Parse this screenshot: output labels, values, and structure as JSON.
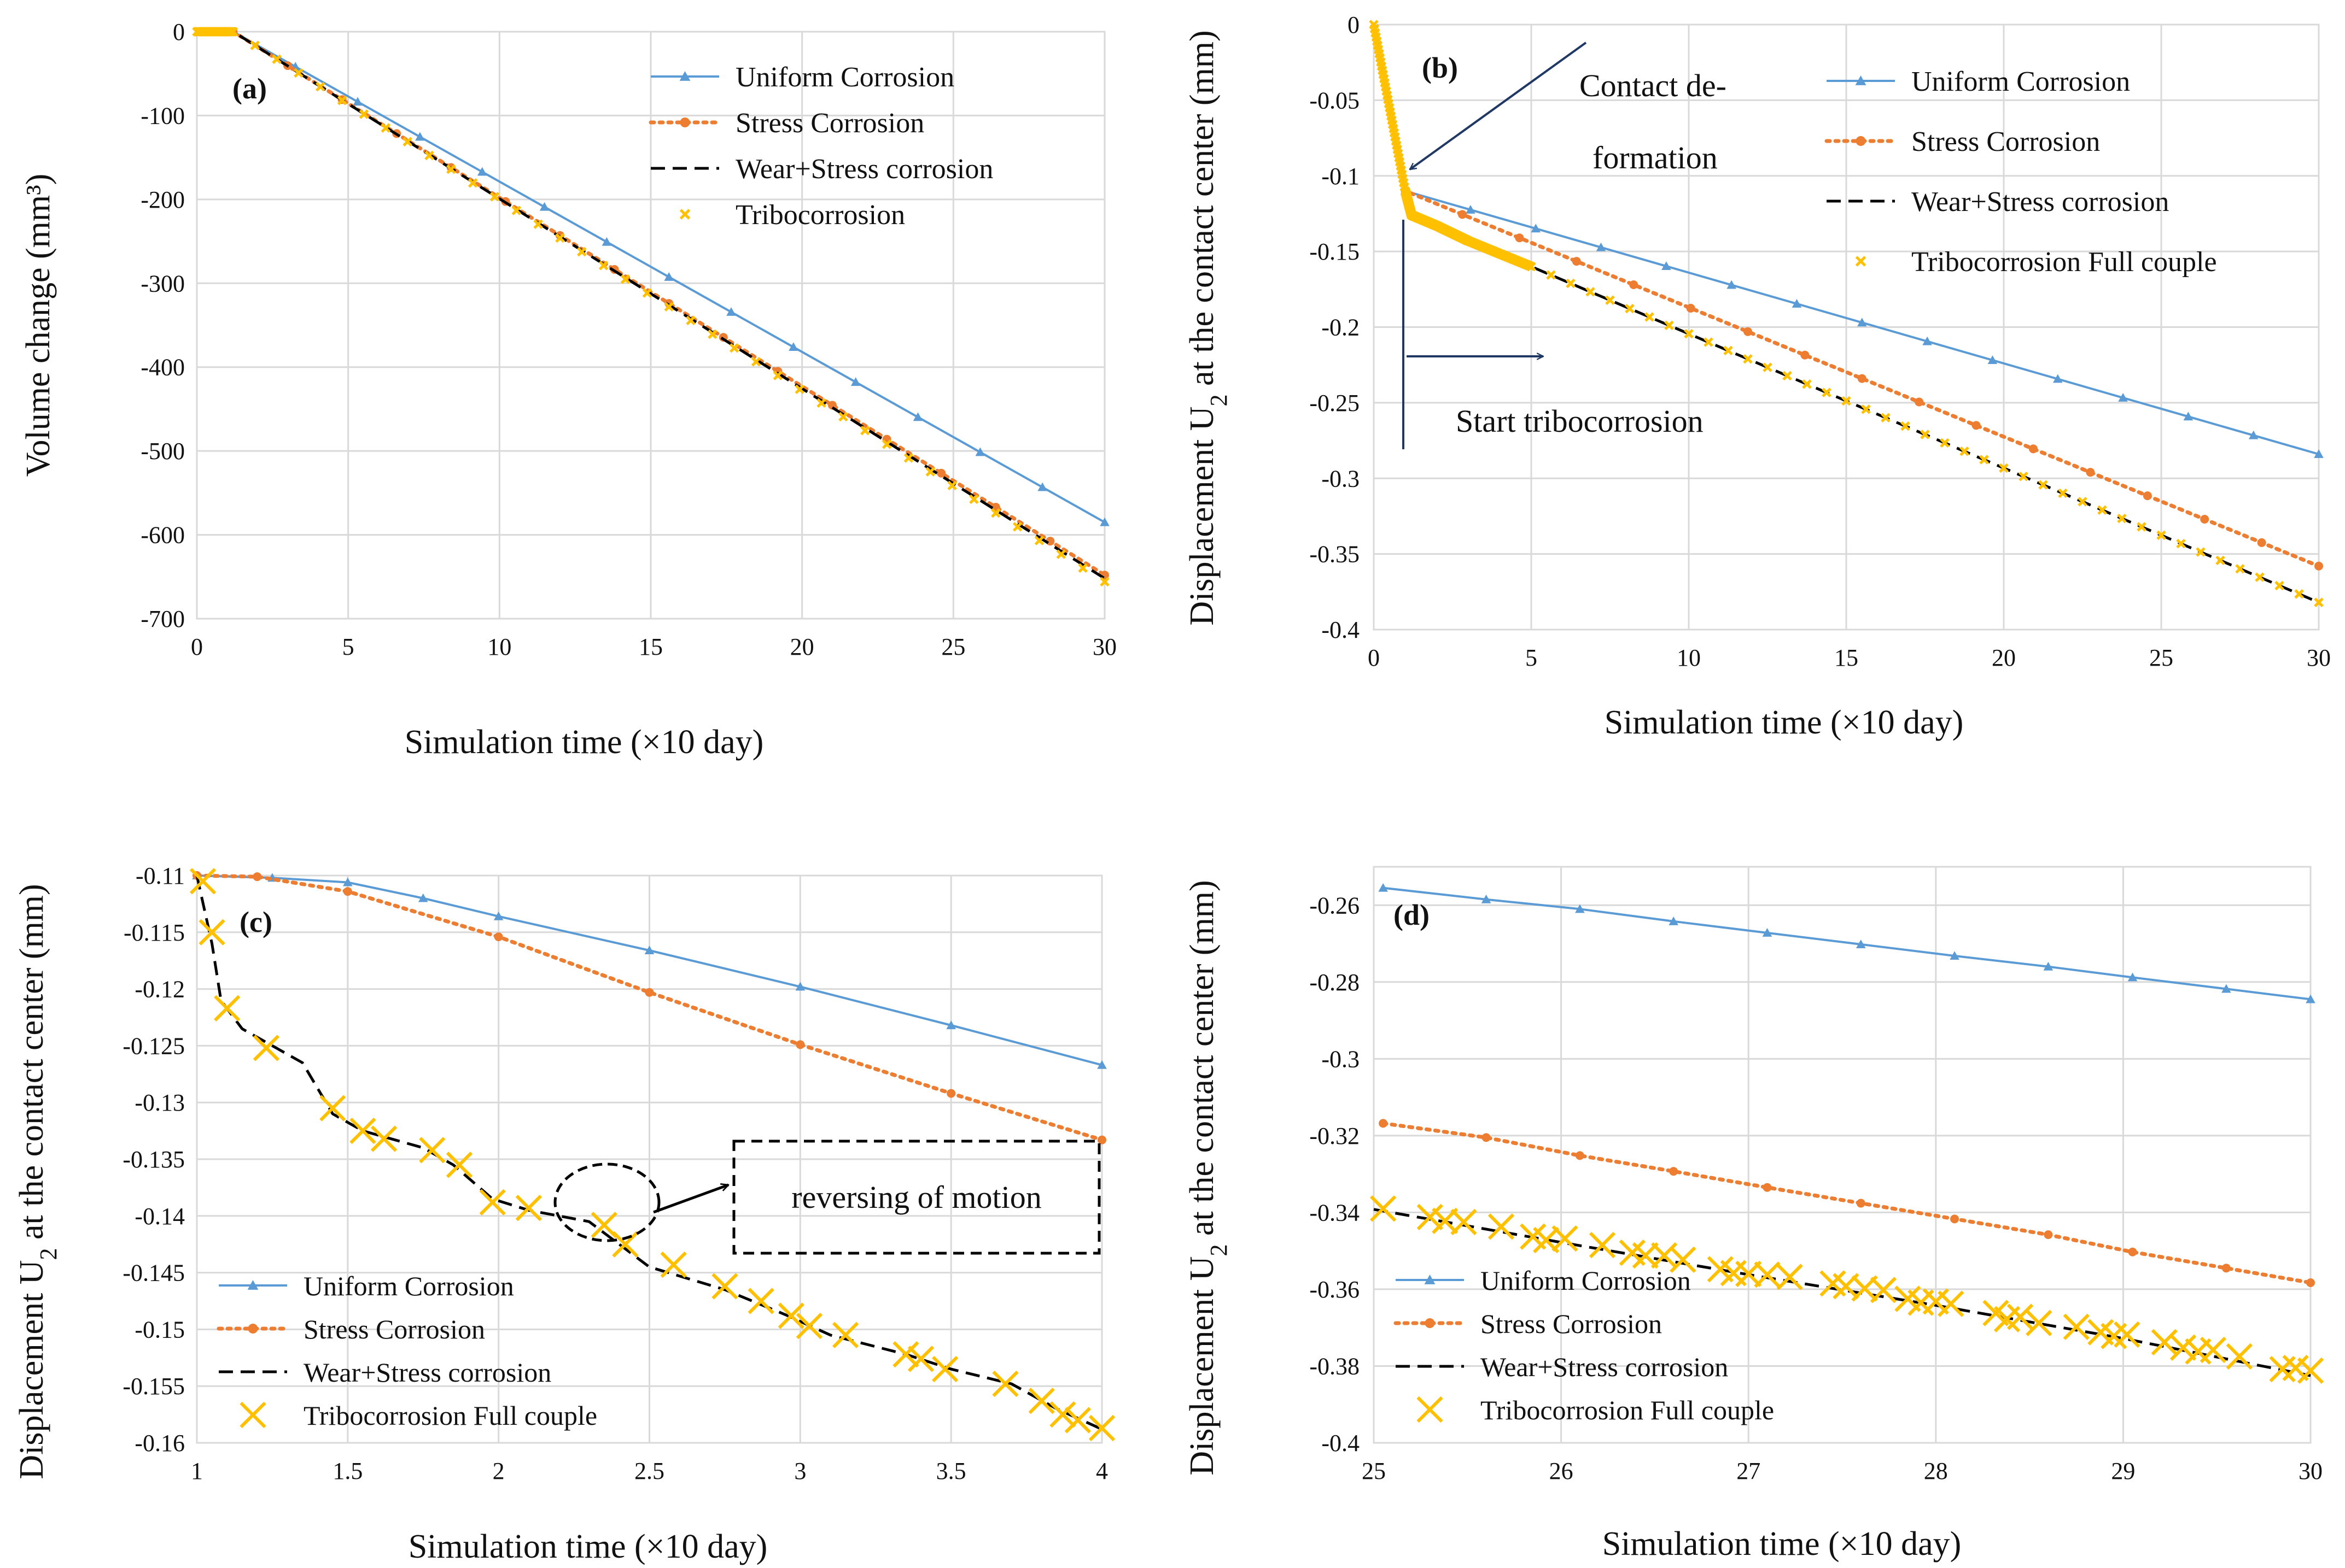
{
  "figure": {
    "xlabel_prefix": "Simulation time (",
    "xlabel_times": "×",
    "xlabel_suffix": "10 day)"
  },
  "colors": {
    "uniform": "#5B9BD5",
    "stress": "#ED7D31",
    "wear": "#000000",
    "tribo": "#FFC000",
    "grid": "#D9D9D9",
    "axis": "#BFBFBF",
    "annotation": "#1F3864"
  },
  "chart_data": [
    {
      "id": "a",
      "type": "line",
      "panel_label": "(a)",
      "ylabel": "Volume change (mm³)",
      "xlim": [
        0,
        30
      ],
      "ylim": [
        -700,
        0
      ],
      "xticks": [
        0,
        5,
        10,
        15,
        20,
        25,
        30
      ],
      "yticks": [
        0,
        -100,
        -200,
        -300,
        -400,
        -500,
        -600,
        -700
      ],
      "legend": [
        "Uniform Corrosion",
        "Stress Corrosion",
        "Wear+Stress corrosion",
        "Tribocorrosion"
      ],
      "series": [
        {
          "name": "Uniform Corrosion",
          "points": [
            [
              0,
              0
            ],
            [
              1.2,
              0
            ],
            [
              30,
              -585
            ]
          ]
        },
        {
          "name": "Stress Corrosion",
          "points": [
            [
              0,
              0
            ],
            [
              1.2,
              0
            ],
            [
              30,
              -648
            ]
          ]
        },
        {
          "name": "Wear+Stress corrosion",
          "points": [
            [
              0,
              0
            ],
            [
              1.2,
              0
            ],
            [
              30,
              -652
            ]
          ]
        },
        {
          "name": "Tribocorrosion",
          "points": [
            [
              0,
              0
            ],
            [
              1.2,
              0
            ],
            [
              30,
              -656
            ]
          ]
        }
      ],
      "annotations": []
    },
    {
      "id": "b",
      "type": "line",
      "panel_label": "(b)",
      "ylabel": "Displacement U2 at the contact center (mm)",
      "xlim": [
        0,
        30
      ],
      "ylim": [
        -0.4,
        0
      ],
      "xticks": [
        0,
        5,
        10,
        15,
        20,
        25,
        30
      ],
      "yticks": [
        0,
        -0.05,
        -0.1,
        -0.15,
        -0.2,
        -0.25,
        -0.3,
        -0.35,
        -0.4
      ],
      "legend": [
        "Uniform Corrosion",
        "Stress Corrosion",
        "Wear+Stress corrosion",
        "Tribocorrosion Full couple"
      ],
      "series": [
        {
          "name": "Uniform Corrosion",
          "points": [
            [
              0,
              0
            ],
            [
              1,
              -0.11
            ],
            [
              30,
              -0.284
            ]
          ]
        },
        {
          "name": "Stress Corrosion",
          "points": [
            [
              0,
              0
            ],
            [
              1,
              -0.11
            ],
            [
              30,
              -0.358
            ]
          ]
        },
        {
          "name": "Wear+Stress corrosion",
          "points": [
            [
              0,
              0
            ],
            [
              1,
              -0.11
            ],
            [
              1.2,
              -0.126
            ],
            [
              2,
              -0.133
            ],
            [
              3,
              -0.143
            ],
            [
              5,
              -0.16
            ],
            [
              30,
              -0.382
            ]
          ]
        },
        {
          "name": "Tribocorrosion Full couple",
          "points": [
            [
              0,
              0
            ],
            [
              1,
              -0.11
            ],
            [
              1.2,
              -0.126
            ],
            [
              2,
              -0.133
            ],
            [
              3,
              -0.143
            ],
            [
              5,
              -0.16
            ],
            [
              30,
              -0.382
            ]
          ]
        }
      ],
      "annotations": [
        "Contact de-",
        "formation",
        "Start tribocorrosion"
      ]
    },
    {
      "id": "c",
      "type": "line",
      "panel_label": "(c)",
      "ylabel": "Displacement U2 at the contact center (mm)",
      "xlim": [
        1,
        4
      ],
      "ylim": [
        -0.16,
        -0.11
      ],
      "xticks": [
        1,
        1.5,
        2,
        2.5,
        3,
        3.5,
        4
      ],
      "yticks": [
        -0.11,
        -0.115,
        -0.12,
        -0.125,
        -0.13,
        -0.135,
        -0.14,
        -0.145,
        -0.15,
        -0.155,
        -0.16
      ],
      "legend": [
        "Uniform Corrosion",
        "Stress Corrosion",
        "Wear+Stress corrosion",
        "Tribocorrosion Full couple"
      ],
      "series": [
        {
          "name": "Uniform Corrosion",
          "points": [
            [
              1,
              -0.11
            ],
            [
              1.25,
              -0.1102
            ],
            [
              1.5,
              -0.1106
            ],
            [
              1.75,
              -0.112
            ],
            [
              2,
              -0.1136
            ],
            [
              2.5,
              -0.1166
            ],
            [
              3,
              -0.1198
            ],
            [
              3.5,
              -0.1232
            ],
            [
              4,
              -0.1267
            ]
          ]
        },
        {
          "name": "Stress Corrosion",
          "points": [
            [
              1,
              -0.11
            ],
            [
              1.2,
              -0.1101
            ],
            [
              1.5,
              -0.1114
            ],
            [
              2,
              -0.1154
            ],
            [
              2.5,
              -0.1203
            ],
            [
              3,
              -0.1249
            ],
            [
              3.5,
              -0.1292
            ],
            [
              4,
              -0.1333
            ]
          ]
        },
        {
          "name": "Wear+Stress corrosion",
          "points": [
            [
              1,
              -0.11
            ],
            [
              1.05,
              -0.116
            ],
            [
              1.08,
              -0.121
            ],
            [
              1.15,
              -0.1235
            ],
            [
              1.25,
              -0.125
            ],
            [
              1.35,
              -0.1265
            ],
            [
              1.45,
              -0.131
            ],
            [
              1.55,
              -0.1325
            ],
            [
              1.75,
              -0.134
            ],
            [
              1.85,
              -0.1355
            ],
            [
              1.98,
              -0.1385
            ],
            [
              2.1,
              -0.1395
            ],
            [
              2.3,
              -0.1405
            ],
            [
              2.4,
              -0.1425
            ],
            [
              2.5,
              -0.1445
            ],
            [
              2.75,
              -0.1465
            ],
            [
              2.95,
              -0.1487
            ],
            [
              3.1,
              -0.1505
            ],
            [
              3.35,
              -0.1522
            ],
            [
              3.5,
              -0.1535
            ],
            [
              3.7,
              -0.1548
            ],
            [
              3.85,
              -0.157
            ],
            [
              4,
              -0.1588
            ]
          ]
        },
        {
          "name": "Tribocorrosion Full couple",
          "points": [
            [
              1.02,
              -0.1105
            ],
            [
              1.05,
              -0.115
            ],
            [
              1.1,
              -0.1217
            ],
            [
              1.23,
              -0.1252
            ],
            [
              1.45,
              -0.1305
            ],
            [
              1.55,
              -0.1325
            ],
            [
              1.62,
              -0.1332
            ],
            [
              1.78,
              -0.1342
            ],
            [
              1.87,
              -0.1355
            ],
            [
              1.98,
              -0.1388
            ],
            [
              2.1,
              -0.1393
            ],
            [
              2.35,
              -0.1408
            ],
            [
              2.42,
              -0.1425
            ],
            [
              2.58,
              -0.1443
            ],
            [
              2.75,
              -0.1462
            ],
            [
              2.87,
              -0.1475
            ],
            [
              2.97,
              -0.1488
            ],
            [
              3.03,
              -0.1497
            ],
            [
              3.15,
              -0.1505
            ],
            [
              3.35,
              -0.1522
            ],
            [
              3.4,
              -0.1526
            ],
            [
              3.48,
              -0.1535
            ],
            [
              3.68,
              -0.1548
            ],
            [
              3.8,
              -0.1563
            ],
            [
              3.87,
              -0.1575
            ],
            [
              3.92,
              -0.158
            ],
            [
              4,
              -0.1587
            ]
          ]
        }
      ],
      "annotations": [
        "reversing of motion"
      ]
    },
    {
      "id": "d",
      "type": "line",
      "panel_label": "(d)",
      "ylabel": "Displacement U2 at the contact center (mm)",
      "xlim": [
        25,
        30
      ],
      "ylim": [
        -0.4,
        -0.25
      ],
      "xticks": [
        25,
        26,
        27,
        28,
        29,
        30
      ],
      "yticks": [
        -0.26,
        -0.28,
        -0.3,
        -0.32,
        -0.34,
        -0.36,
        -0.38,
        -0.4
      ],
      "legend": [
        "Uniform Corrosion",
        "Stress Corrosion",
        "Wear+Stress corrosion",
        "Tribocorrosion Full couple"
      ],
      "series": [
        {
          "name": "Uniform Corrosion",
          "points": [
            [
              25.05,
              -0.2555
            ],
            [
              25.6,
              -0.2585
            ],
            [
              26.1,
              -0.261
            ],
            [
              26.6,
              -0.2642
            ],
            [
              27.1,
              -0.2672
            ],
            [
              27.6,
              -0.2702
            ],
            [
              28.1,
              -0.2732
            ],
            [
              28.6,
              -0.276
            ],
            [
              29.05,
              -0.2788
            ],
            [
              29.55,
              -0.2818
            ],
            [
              30,
              -0.2845
            ]
          ]
        },
        {
          "name": "Stress Corrosion",
          "points": [
            [
              25.05,
              -0.3168
            ],
            [
              25.6,
              -0.3205
            ],
            [
              26.1,
              -0.3252
            ],
            [
              26.6,
              -0.3293
            ],
            [
              27.1,
              -0.3335
            ],
            [
              27.6,
              -0.3376
            ],
            [
              28.1,
              -0.3417
            ],
            [
              28.6,
              -0.3458
            ],
            [
              29.05,
              -0.3503
            ],
            [
              29.55,
              -0.3545
            ],
            [
              30,
              -0.3583
            ]
          ]
        },
        {
          "name": "Wear+Stress corrosion",
          "points": [
            [
              25,
              -0.3392
            ],
            [
              26,
              -0.3478
            ],
            [
              27,
              -0.3562
            ],
            [
              28,
              -0.3642
            ],
            [
              29,
              -0.3728
            ],
            [
              30,
              -0.3825
            ]
          ]
        },
        {
          "name": "Tribocorrosion Full couple",
          "points": [
            [
              25.05,
              -0.339
            ],
            [
              25.3,
              -0.3412
            ],
            [
              25.38,
              -0.3422
            ],
            [
              25.48,
              -0.3425
            ],
            [
              25.68,
              -0.3437
            ],
            [
              25.85,
              -0.3463
            ],
            [
              25.92,
              -0.3472
            ],
            [
              26.02,
              -0.3468
            ],
            [
              26.22,
              -0.3485
            ],
            [
              26.38,
              -0.3505
            ],
            [
              26.45,
              -0.3512
            ],
            [
              26.55,
              -0.3512
            ],
            [
              26.65,
              -0.3523
            ],
            [
              26.85,
              -0.3548
            ],
            [
              26.92,
              -0.3558
            ],
            [
              27.0,
              -0.356
            ],
            [
              27.1,
              -0.3562
            ],
            [
              27.22,
              -0.3568
            ],
            [
              27.45,
              -0.3585
            ],
            [
              27.52,
              -0.3592
            ],
            [
              27.62,
              -0.3598
            ],
            [
              27.72,
              -0.3602
            ],
            [
              27.85,
              -0.3625
            ],
            [
              27.92,
              -0.3635
            ],
            [
              28.0,
              -0.3632
            ],
            [
              28.08,
              -0.3638
            ],
            [
              28.32,
              -0.3662
            ],
            [
              28.38,
              -0.3678
            ],
            [
              28.45,
              -0.3672
            ],
            [
              28.55,
              -0.3688
            ],
            [
              28.75,
              -0.3698
            ],
            [
              28.88,
              -0.3712
            ],
            [
              28.95,
              -0.3722
            ],
            [
              29.02,
              -0.3718
            ],
            [
              29.22,
              -0.3738
            ],
            [
              29.32,
              -0.3752
            ],
            [
              29.4,
              -0.3762
            ],
            [
              29.48,
              -0.3758
            ],
            [
              29.62,
              -0.3775
            ],
            [
              29.85,
              -0.3808
            ],
            [
              29.92,
              -0.3805
            ],
            [
              30.0,
              -0.3812
            ]
          ]
        }
      ],
      "annotations": []
    }
  ]
}
